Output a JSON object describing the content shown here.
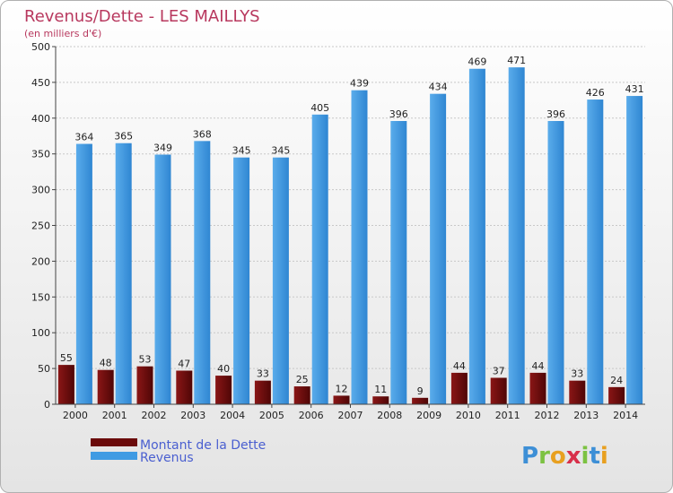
{
  "chart_data": {
    "type": "bar",
    "title": "Revenus/Dette - LES MAILLYS",
    "subtitle": "(en milliers d'€)",
    "categories": [
      "2000",
      "2001",
      "2002",
      "2003",
      "2004",
      "2005",
      "2006",
      "2007",
      "2008",
      "2009",
      "2010",
      "2011",
      "2012",
      "2013",
      "2014"
    ],
    "series": [
      {
        "name": "Montant de la Dette",
        "color": "#6b0b0b",
        "values": [
          55,
          48,
          53,
          47,
          40,
          33,
          25,
          12,
          11,
          9,
          44,
          37,
          44,
          33,
          24
        ]
      },
      {
        "name": "Revenus",
        "color": "#3f9be3",
        "values": [
          364,
          365,
          349,
          368,
          345,
          345,
          405,
          439,
          396,
          434,
          469,
          471,
          396,
          426,
          431
        ]
      }
    ],
    "ylim": [
      0,
      500
    ],
    "yticks": [
      0,
      50,
      100,
      150,
      200,
      250,
      300,
      350,
      400,
      450,
      500
    ],
    "grid": true,
    "legend_position": "bottom-left"
  },
  "logo": {
    "letters": [
      "P",
      "r",
      "o",
      "x",
      "i",
      "t",
      "i"
    ],
    "colors": [
      "#3d8fd6",
      "#7cc242",
      "#e8a020",
      "#d8304a",
      "#7cc242",
      "#3d8fd6",
      "#e8a020"
    ]
  }
}
